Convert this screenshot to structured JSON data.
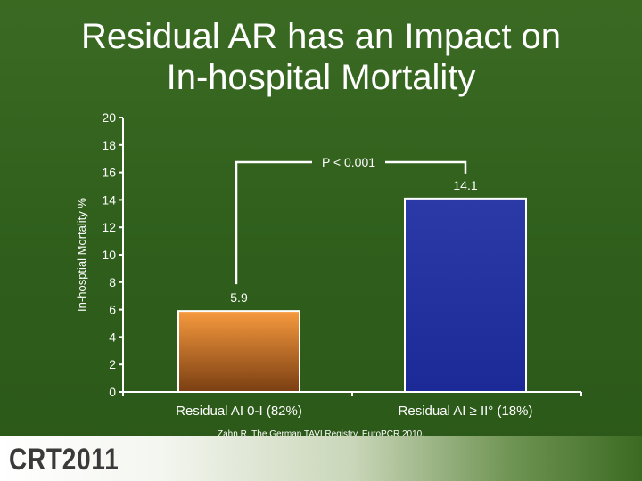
{
  "slide": {
    "title_line1": "Residual AR has an Impact on",
    "title_line2": "In-hospital Mortality",
    "citation": "Zahn R. The German TAVI Registry, EuroPCR 2010.",
    "logo_text": "CRT2011"
  },
  "chart_data": {
    "type": "bar",
    "ylabel": "In-hosptial Mortality %",
    "ylim": [
      0,
      20
    ],
    "yticks": [
      0,
      2,
      4,
      6,
      8,
      10,
      12,
      14,
      16,
      18,
      20
    ],
    "categories": [
      "Residual AI 0-I (82%)",
      "Residual AI ≥ II° (18%)"
    ],
    "values": [
      5.9,
      14.1
    ],
    "data_labels": [
      "5.9",
      "14.1"
    ],
    "annotation": "P < 0.001",
    "grid": false,
    "legend": "none"
  },
  "colors": {
    "background": "#2f5e1c",
    "bar1_top": "#f79a3e",
    "bar1_bottom": "#7a3f12",
    "bar2_top": "#2c3aa8",
    "bar2_bottom": "#1c2a98",
    "axis": "#ffffff"
  }
}
